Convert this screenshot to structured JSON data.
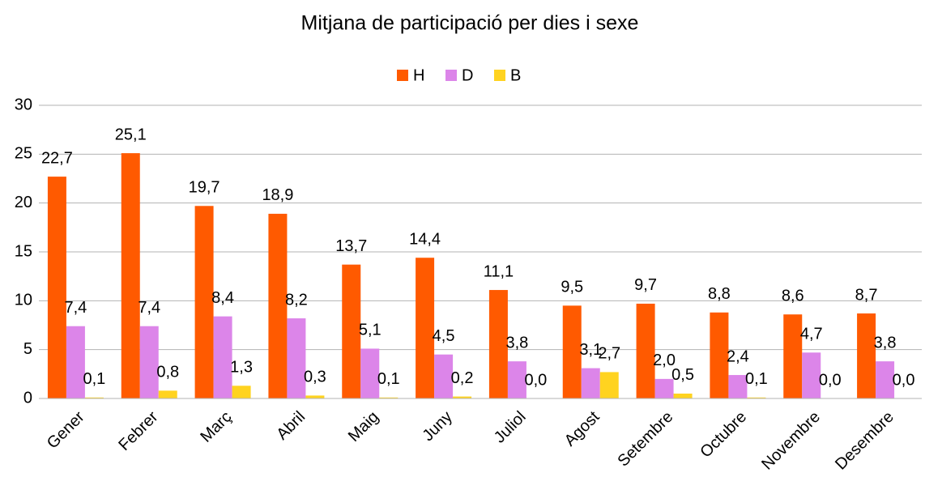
{
  "chart_data": {
    "type": "bar",
    "title": "Mitjana de participació per dies i sexe",
    "categories": [
      "Gener",
      "Febrer",
      "Març",
      "Abril",
      "Maig",
      "Juny",
      "Juliol",
      "Agost",
      "Setembre",
      "Octubre",
      "Novembre",
      "Desembre"
    ],
    "series": [
      {
        "name": "H",
        "color": "#ff5a00",
        "values": [
          22.7,
          25.1,
          19.7,
          18.9,
          13.7,
          14.4,
          11.1,
          9.5,
          9.7,
          8.8,
          8.6,
          8.7
        ],
        "value_labels": [
          "22,7",
          "25,1",
          "19,7",
          "18,9",
          "13,7",
          "14,4",
          "11,1",
          "9,5",
          "9,7",
          "8,8",
          "8,6",
          "8,7"
        ]
      },
      {
        "name": "D",
        "color": "#dc85e9",
        "values": [
          7.4,
          7.4,
          8.4,
          8.2,
          5.1,
          4.5,
          3.8,
          3.1,
          2.0,
          2.4,
          4.7,
          3.8
        ],
        "value_labels": [
          "7,4",
          "7,4",
          "8,4",
          "8,2",
          "5,1",
          "4,5",
          "3,8",
          "3,1",
          "2,0",
          "2,4",
          "4,7",
          "3,8"
        ]
      },
      {
        "name": "B",
        "color": "#ffd320",
        "values": [
          0.1,
          0.8,
          1.3,
          0.3,
          0.1,
          0.2,
          0.0,
          2.7,
          0.5,
          0.1,
          0.0,
          0.0
        ],
        "value_labels": [
          "0,1",
          "0,8",
          "1,3",
          "0,3",
          "0,1",
          "0,2",
          "0,0",
          "2,7",
          "0,5",
          "0,1",
          "0,0",
          "0,0"
        ]
      }
    ],
    "ylim": [
      0,
      30
    ],
    "yticks": [
      0,
      5,
      10,
      15,
      20,
      25,
      30
    ],
    "grid": true,
    "legend": "top"
  }
}
